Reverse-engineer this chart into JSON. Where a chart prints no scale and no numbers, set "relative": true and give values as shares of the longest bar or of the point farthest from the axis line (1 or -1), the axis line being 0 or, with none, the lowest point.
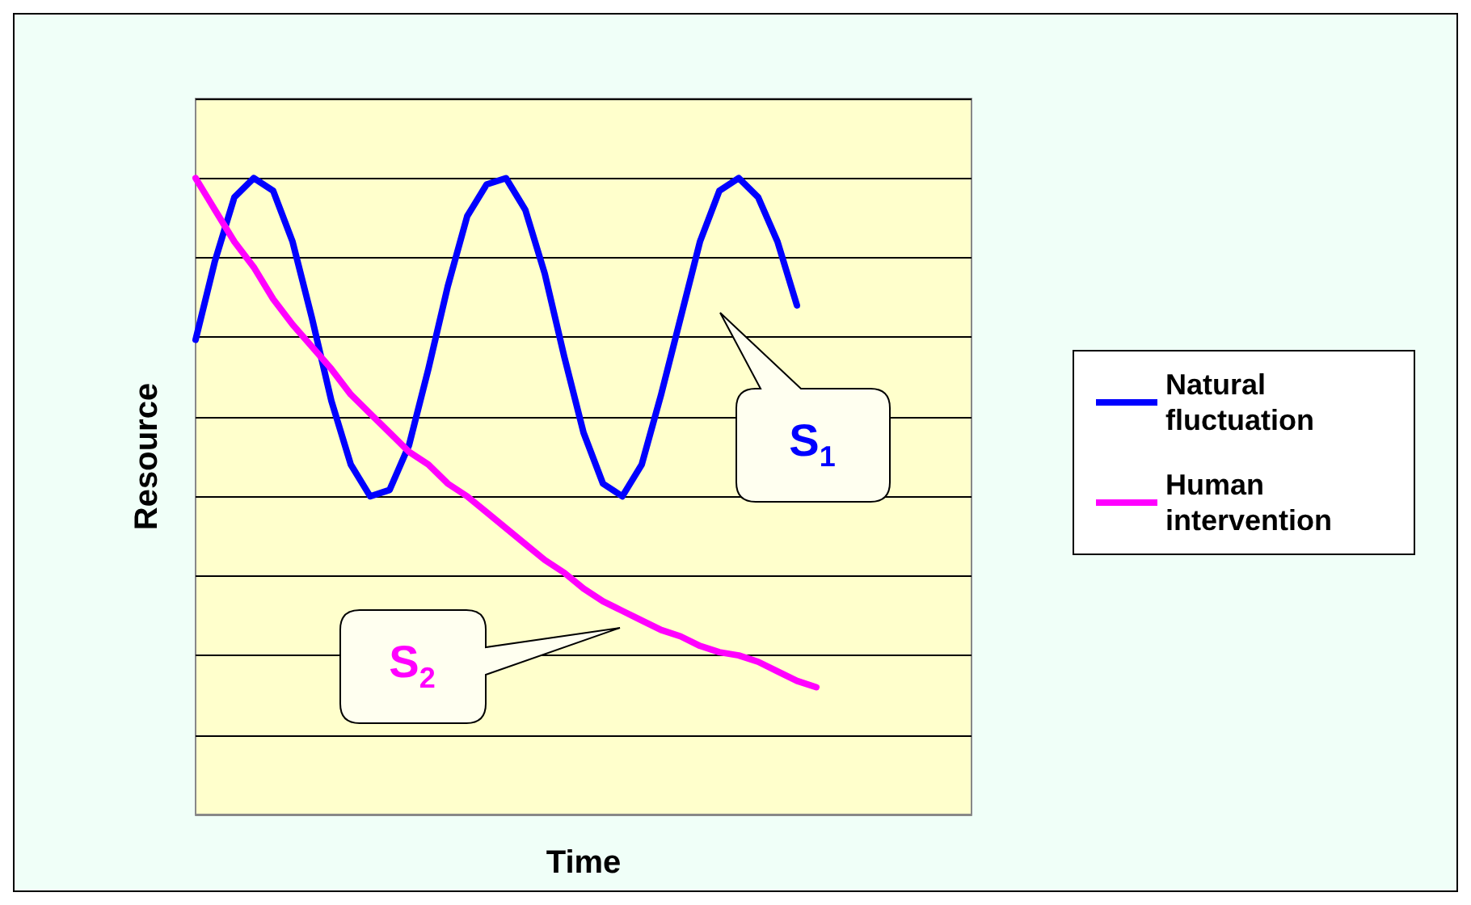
{
  "chart_data": {
    "type": "line",
    "relative": true,
    "xlabel": "Time",
    "ylabel": "Resource",
    "grid": "y",
    "legend": "right",
    "marker": "none",
    "line_style": "solid",
    "categories": [
      null,
      null,
      null,
      null,
      null,
      null,
      null,
      null,
      null,
      null,
      null,
      null,
      null,
      null,
      null,
      null,
      null,
      null,
      null,
      null,
      null,
      null,
      null,
      null,
      null,
      null,
      null,
      null,
      null,
      null,
      null,
      null,
      null,
      null,
      null,
      null,
      null,
      null,
      null,
      null,
      null
    ],
    "series": [
      {
        "name": "Natural fluctuation",
        "color": "#0000ff",
        "values": [
          0.746,
          0.87,
          0.97,
          1.0,
          0.98,
          0.9,
          0.78,
          0.65,
          0.55,
          0.5,
          0.51,
          0.58,
          0.7,
          0.83,
          0.94,
          0.99,
          1.0,
          0.95,
          0.85,
          0.72,
          0.6,
          0.52,
          0.5,
          0.55,
          0.66,
          0.78,
          0.9,
          0.98,
          1.0,
          0.97,
          0.9,
          0.8,
          null,
          null,
          null,
          null,
          null,
          null,
          null,
          null,
          null
        ]
      },
      {
        "name": "Human intervention",
        "color": "#ff00ff",
        "values": [
          1.0,
          0.95,
          0.9,
          0.86,
          0.81,
          0.77,
          0.735,
          0.7,
          0.66,
          0.63,
          0.6,
          0.57,
          0.55,
          0.52,
          0.5,
          0.475,
          0.45,
          0.425,
          0.4,
          0.38,
          0.355,
          0.335,
          0.32,
          0.305,
          0.29,
          0.28,
          0.265,
          0.255,
          0.25,
          0.24,
          0.225,
          0.21,
          0.2,
          null,
          null,
          null,
          null,
          null,
          null,
          null,
          null
        ]
      }
    ],
    "annotations": [
      "S$_{1}$",
      "S$_{2}$"
    ]
  }
}
